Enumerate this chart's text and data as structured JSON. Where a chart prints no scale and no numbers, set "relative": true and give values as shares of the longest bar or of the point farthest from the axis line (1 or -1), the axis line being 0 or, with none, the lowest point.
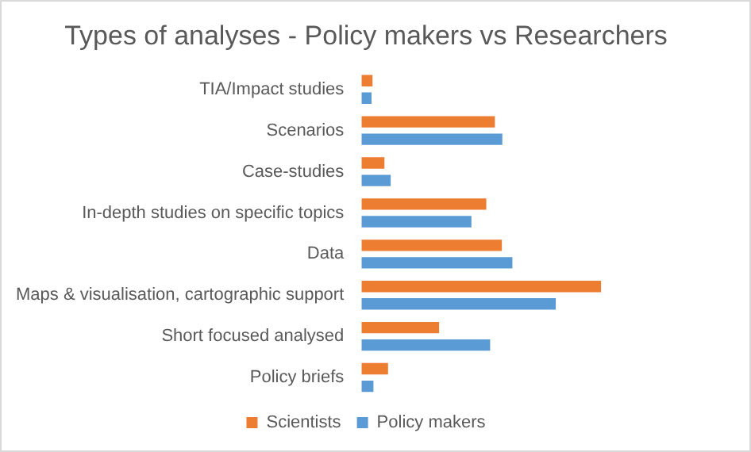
{
  "chart_data": {
    "type": "bar",
    "orientation": "horizontal",
    "relative": true,
    "title": "Types of analyses - Policy makers vs Researchers",
    "categories": [
      "TIA/Impact studies",
      "Scenarios",
      "Case-studies",
      "In-depth studies on specific topics",
      "Data",
      "Maps & visualisation, cartographic support",
      "Short focused analysed",
      "Policy briefs"
    ],
    "series": [
      {
        "name": "Scientists",
        "color": "#ed7d31",
        "values": [
          0.046,
          0.557,
          0.096,
          0.521,
          0.586,
          1,
          0.324,
          0.111
        ]
      },
      {
        "name": "Policy makers",
        "color": "#5b9bd5",
        "values": [
          0.042,
          0.588,
          0.122,
          0.459,
          0.63,
          0.811,
          0.537,
          0.05
        ]
      }
    ],
    "legend": "bottom"
  }
}
